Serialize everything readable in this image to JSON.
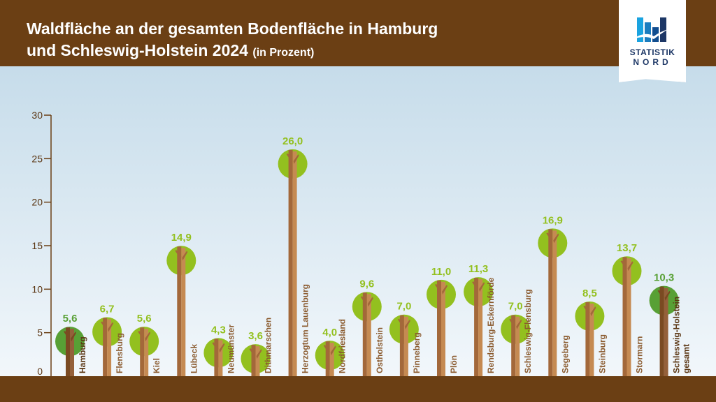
{
  "header": {
    "title_line1": "Waldfläche an der gesamten Bodenfläche in Hamburg",
    "title_line2": "und Schleswig-Holstein 2024",
    "title_unit": "(in Prozent)"
  },
  "logo": {
    "line1": "STATISTIK",
    "line2": "NORD"
  },
  "colors": {
    "header": "#6b3f14",
    "crown_light": "#93c01f",
    "crown_dark": "#58a035",
    "label_brown": "#8a5a2e",
    "label_dark": "#5a3512"
  },
  "chart_data": {
    "type": "bar",
    "title": "Waldfläche an der gesamten Bodenfläche in Hamburg und Schleswig-Holstein 2024 (in Prozent)",
    "ylim": [
      0,
      30
    ],
    "yticks": [
      0,
      5,
      10,
      15,
      20,
      25,
      30
    ],
    "grid": false,
    "categories": [
      "Hamburg",
      "Flensburg",
      "Kiel",
      "Lübeck",
      "Neumünster",
      "Dithmarschen",
      "Herzogtum Lauenburg",
      "Nordfriesland",
      "Ostholstein",
      "Pinneberg",
      "Plön",
      "Rendsburg-Eckernförde",
      "Schleswig-Flensburg",
      "Segeberg",
      "Steinburg",
      "Stormarn",
      "Schleswig-Holstein gesamt"
    ],
    "values": [
      5.6,
      6.7,
      5.6,
      14.9,
      4.3,
      3.6,
      26.0,
      4.0,
      9.6,
      7.0,
      11.0,
      11.3,
      7.0,
      16.9,
      8.5,
      13.7,
      10.3
    ],
    "value_labels": [
      "5,6",
      "6,7",
      "5,6",
      "14,9",
      "4,3",
      "3,6",
      "26,0",
      "4,0",
      "9,6",
      "7,0",
      "11,0",
      "11,3",
      "7,0",
      "16,9",
      "8,5",
      "13,7",
      "10,3"
    ],
    "highlighted": [
      "Hamburg",
      "Schleswig-Holstein gesamt"
    ]
  }
}
